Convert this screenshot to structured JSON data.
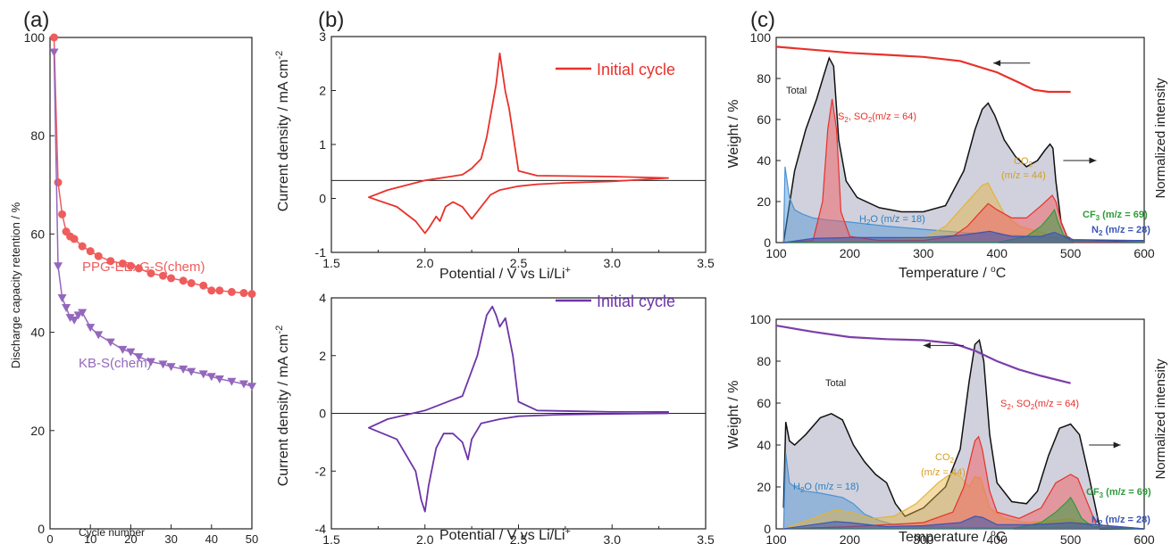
{
  "panel_labels": {
    "a": "(a)",
    "b": "(b)",
    "c": "(c)"
  },
  "colors": {
    "pink": "#ef5c5c",
    "purple": "#9467bd",
    "cv_red": "#e8312b",
    "cv_purple": "#6d35a8",
    "total_fill": "#c8c9d6",
    "s2": "#f25d5d",
    "co2": "#e4b23c",
    "h2o": "#4c92d2",
    "cf3": "#2e9b3a",
    "n2": "#3a55b5",
    "weight_top": "#e8312b",
    "weight_bot": "#7b3fa8"
  },
  "texts": {
    "a_ylabel": "Discharge capacity retention / %",
    "a_xlabel": "Cycle number",
    "a_series1": "PPG-EExG-S(chem)",
    "a_series2": "KB-S(chem)",
    "b_ylabel": "Current density / mA cm",
    "b_ylabel_sup": "-2",
    "b_xlabel_main": "Potential / V vs Li/Li",
    "b_xlabel_sup": "+",
    "b_legend": "Initial cycle",
    "c_ylabel": "Weight / %",
    "c_ylabel_right": "Normalized intensity",
    "c_xlabel_main": "Temperature / ",
    "c_xlabel_sup": "o",
    "c_xlabel_unit": "C",
    "total": "Total",
    "s2_main": "S",
    "s2_sub": "2",
    "s2_rest": ", SO",
    "s2_sub2": "2",
    "s2_tail": "(m/z = 64)",
    "co2_main": "CO",
    "co2_sub": "2",
    "co2_mz": "(m/z = 44)",
    "h2o_main": "H",
    "h2o_sub": "2",
    "h2o_tail": "O (m/z = 18)",
    "cf3_main": "CF",
    "cf3_sub": "3",
    "cf3_tail": " (m/z = 69)",
    "n2_main": "N",
    "n2_sub": "2",
    "n2_tail": " (m/z = 28)"
  },
  "chart_data": [
    {
      "id": "a",
      "type": "scatter",
      "xlabel": "Cycle number",
      "ylabel": "Discharge capacity retention / %",
      "xlim": [
        0,
        50
      ],
      "ylim": [
        0,
        100
      ],
      "xticks": [
        "0",
        "10",
        "20",
        "30",
        "40",
        "50"
      ],
      "yticks": [
        "0",
        "20",
        "40",
        "60",
        "80",
        "100"
      ],
      "series": [
        {
          "name": "PPG-EExG-S(chem)",
          "marker": "circle",
          "x": [
            1,
            2,
            3,
            4,
            5,
            6,
            8,
            10,
            12,
            15,
            18,
            20,
            22,
            25,
            28,
            30,
            33,
            35,
            38,
            40,
            42,
            45,
            48,
            50
          ],
          "y": [
            100,
            70.5,
            64,
            60.5,
            59.5,
            59,
            57.5,
            56.5,
            55.5,
            54.5,
            54,
            53.5,
            53,
            52,
            51.5,
            51,
            50.5,
            50,
            49.5,
            48.5,
            48.5,
            48.2,
            48,
            47.8
          ]
        },
        {
          "name": "KB-S(chem)",
          "marker": "triangle-down",
          "x": [
            1,
            2,
            3,
            4,
            5,
            6,
            7,
            8,
            10,
            12,
            15,
            18,
            20,
            22,
            25,
            28,
            30,
            33,
            35,
            38,
            40,
            42,
            45,
            48,
            50
          ],
          "y": [
            97,
            53.5,
            47,
            45,
            43,
            42.5,
            43.5,
            44,
            41,
            39.5,
            38,
            36.5,
            36,
            35,
            34,
            33.5,
            33,
            32.5,
            32,
            31.5,
            31,
            30.5,
            30,
            29.5,
            29
          ]
        }
      ]
    },
    {
      "id": "b-top",
      "type": "line",
      "xlabel": "Potential / V vs Li/Li+",
      "ylabel": "Current density / mA cm-2",
      "xlim": [
        1.5,
        3.5
      ],
      "ylim": [
        -1.5,
        3
      ],
      "xticks": [
        "1.5",
        "2.0",
        "2.5",
        "3.0",
        "3.5"
      ],
      "yticks": [
        "-1",
        "0",
        "1",
        "2",
        "3"
      ],
      "series": [
        {
          "name": "Initial cycle",
          "x": [
            1.7,
            1.85,
            1.95,
            2.0,
            2.02,
            2.06,
            2.08,
            2.11,
            2.15,
            2.2,
            2.25,
            2.3,
            2.35,
            2.4,
            2.5,
            2.6,
            2.75,
            3.0,
            3.3,
            3.3,
            3.0,
            2.6,
            2.5,
            2.45,
            2.43,
            2.4,
            2.38,
            2.33,
            2.3,
            2.25,
            2.2,
            2.0,
            1.8,
            1.7
          ],
          "y": [
            -0.35,
            -0.55,
            -0.85,
            -1.1,
            -1.0,
            -0.75,
            -0.85,
            -0.55,
            -0.45,
            -0.55,
            -0.8,
            -0.55,
            -0.3,
            -0.2,
            -0.12,
            -0.08,
            -0.05,
            -0.02,
            0.05,
            0.05,
            0.08,
            0.1,
            0.2,
            1.5,
            1.85,
            2.65,
            2.0,
            0.9,
            0.45,
            0.25,
            0.12,
            0.0,
            -0.2,
            -0.35
          ]
        }
      ]
    },
    {
      "id": "b-bottom",
      "type": "line",
      "xlabel": "Potential / V vs Li/Li+",
      "ylabel": "Current density / mA cm-2",
      "xlim": [
        1.5,
        3.5
      ],
      "ylim": [
        -4,
        4
      ],
      "xticks": [
        "1.5",
        "2.0",
        "2.5",
        "3.0",
        "3.5"
      ],
      "yticks": [
        "-4",
        "-2",
        "0",
        "2",
        "4"
      ],
      "series": [
        {
          "name": "Initial cycle",
          "x": [
            1.7,
            1.85,
            1.95,
            1.98,
            2.0,
            2.02,
            2.06,
            2.1,
            2.15,
            2.2,
            2.23,
            2.25,
            2.3,
            2.4,
            2.5,
            2.7,
            3.0,
            3.3,
            3.3,
            3.0,
            2.6,
            2.5,
            2.47,
            2.43,
            2.4,
            2.38,
            2.36,
            2.33,
            2.28,
            2.2,
            2.0,
            1.8,
            1.7
          ],
          "y": [
            -0.5,
            -0.9,
            -2.0,
            -3.0,
            -3.4,
            -2.5,
            -1.2,
            -0.7,
            -0.7,
            -1.0,
            -1.6,
            -0.9,
            -0.35,
            -0.2,
            -0.1,
            -0.05,
            -0.02,
            0.0,
            0.05,
            0.05,
            0.1,
            0.4,
            2.0,
            3.3,
            3.0,
            3.4,
            3.7,
            3.4,
            2.0,
            0.6,
            0.1,
            -0.2,
            -0.5
          ]
        }
      ]
    },
    {
      "id": "c-top",
      "type": "area",
      "xlabel": "Temperature / oC",
      "ylabel": "Weight / %",
      "ylabel_right": "Normalized intensity",
      "xlim": [
        100,
        600
      ],
      "ylim": [
        0,
        100
      ],
      "xticks": [
        "100",
        "200",
        "300",
        "400",
        "500",
        "600"
      ],
      "yticks": [
        "0",
        "20",
        "40",
        "60",
        "80",
        "100"
      ],
      "series": [
        {
          "name": "Weight",
          "x": [
            100,
            150,
            200,
            250,
            300,
            350,
            400,
            430,
            450,
            470,
            500
          ],
          "y": [
            95.5,
            94,
            92.5,
            91.5,
            90.5,
            88.5,
            83,
            78,
            74.5,
            73.5,
            73.5
          ]
        },
        {
          "name": "Total",
          "x": [
            110,
            125,
            140,
            155,
            165,
            172,
            178,
            185,
            195,
            210,
            240,
            270,
            300,
            330,
            355,
            370,
            380,
            388,
            397,
            410,
            425,
            440,
            455,
            465,
            472,
            476,
            480,
            487,
            495,
            505,
            600
          ],
          "y": [
            0,
            35,
            55,
            70,
            82,
            90,
            86,
            50,
            30,
            22,
            17,
            15,
            15,
            18,
            35,
            55,
            65,
            68,
            62,
            50,
            42,
            37,
            40,
            45,
            48,
            46,
            30,
            10,
            3,
            1,
            1
          ]
        },
        {
          "name": "S2, SO2 (m/z = 64)",
          "x": [
            110,
            150,
            163,
            170,
            176,
            182,
            188,
            200,
            240,
            300,
            340,
            360,
            375,
            388,
            400,
            420,
            440,
            460,
            475,
            480,
            487,
            495,
            505,
            600
          ],
          "y": [
            0,
            1,
            20,
            55,
            70,
            55,
            15,
            3,
            1,
            1,
            3,
            8,
            14,
            19,
            16,
            12,
            12,
            18,
            23,
            20,
            10,
            3,
            0,
            0
          ]
        },
        {
          "name": "CO2 (m/z = 44)",
          "x": [
            110,
            200,
            300,
            330,
            355,
            370,
            380,
            388,
            395,
            410,
            430,
            460,
            480,
            500,
            600
          ],
          "y": [
            0,
            1,
            2,
            8,
            18,
            24,
            28,
            29,
            24,
            14,
            8,
            5,
            3,
            1,
            0
          ]
        },
        {
          "name": "H2O (m/z = 18)",
          "x": [
            110,
            112,
            118,
            125,
            135,
            150,
            170,
            200,
            250,
            300,
            350,
            400,
            450,
            500,
            510,
            600
          ],
          "y": [
            0,
            37,
            22,
            16,
            14,
            12,
            11,
            10,
            8,
            6.5,
            5,
            4,
            3,
            2,
            0,
            0
          ]
        },
        {
          "name": "CF3 (m/z = 69)",
          "x": [
            110,
            400,
            440,
            460,
            472,
            478,
            483,
            490,
            500,
            600
          ],
          "y": [
            0,
            0,
            3,
            8,
            13,
            16,
            10,
            4,
            1,
            0
          ]
        },
        {
          "name": "N2 (m/z = 28)",
          "x": [
            110,
            150,
            200,
            300,
            350,
            380,
            390,
            420,
            460,
            478,
            500,
            600
          ],
          "y": [
            0,
            2,
            2.5,
            2.5,
            3.5,
            5,
            5.5,
            3,
            3,
            5,
            1.5,
            1
          ]
        }
      ]
    },
    {
      "id": "c-bottom",
      "type": "area",
      "xlabel": "Temperature / oC",
      "ylabel": "Weight / %",
      "ylabel_right": "Normalized intensity",
      "xlim": [
        100,
        600
      ],
      "ylim": [
        0,
        100
      ],
      "xticks": [
        "100",
        "200",
        "300",
        "400",
        "500",
        "600"
      ],
      "yticks": [
        "0",
        "20",
        "40",
        "60",
        "80",
        "100"
      ],
      "series": [
        {
          "name": "Weight",
          "x": [
            100,
            150,
            200,
            250,
            300,
            340,
            370,
            400,
            430,
            460,
            500
          ],
          "y": [
            97,
            94,
            91.5,
            90.5,
            90,
            88.5,
            85,
            80,
            76,
            73,
            69.5
          ]
        },
        {
          "name": "Total",
          "x": [
            110,
            113,
            118,
            125,
            140,
            160,
            175,
            190,
            205,
            220,
            235,
            250,
            262,
            275,
            300,
            330,
            350,
            362,
            370,
            376,
            382,
            390,
            400,
            420,
            440,
            455,
            470,
            485,
            500,
            512,
            525,
            540,
            600
          ],
          "y": [
            10,
            51,
            42,
            40,
            45,
            53,
            55,
            52,
            40,
            32,
            26,
            22,
            12,
            6,
            10,
            20,
            38,
            70,
            88,
            90,
            80,
            45,
            22,
            13,
            12,
            18,
            35,
            48,
            50,
            45,
            25,
            0,
            0
          ]
        },
        {
          "name": "S2, SO2 (m/z = 64)",
          "x": [
            110,
            200,
            300,
            340,
            355,
            365,
            370,
            375,
            380,
            390,
            400,
            430,
            460,
            480,
            500,
            510,
            520,
            535,
            600
          ],
          "y": [
            0,
            1,
            3,
            8,
            20,
            35,
            42,
            44,
            38,
            18,
            8,
            5,
            10,
            22,
            26,
            24,
            15,
            2,
            0
          ]
        },
        {
          "name": "CO2 (m/z = 44)",
          "x": [
            110,
            150,
            180,
            200,
            230,
            260,
            290,
            320,
            340,
            350,
            362,
            370,
            378,
            390,
            410,
            440,
            480,
            500,
            530,
            600
          ],
          "y": [
            0,
            5,
            9,
            8,
            5,
            6,
            12,
            22,
            27,
            25,
            20,
            25,
            24,
            10,
            5,
            3,
            4,
            5,
            1,
            0
          ]
        },
        {
          "name": "H2O (m/z = 18)",
          "x": [
            110,
            113,
            118,
            125,
            140,
            160,
            175,
            190,
            205,
            220,
            240,
            260,
            300,
            400,
            500,
            600
          ],
          "y": [
            0,
            36,
            22,
            20,
            18,
            17,
            16,
            15,
            12,
            7,
            4,
            2,
            1,
            0.5,
            0.5,
            0
          ]
        },
        {
          "name": "CF3 (m/z = 69)",
          "x": [
            110,
            420,
            460,
            480,
            495,
            500,
            505,
            515,
            530,
            600
          ],
          "y": [
            0,
            0,
            3,
            8,
            13,
            15,
            12,
            5,
            1,
            0
          ]
        },
        {
          "name": "N2 (m/z = 28)",
          "x": [
            110,
            150,
            180,
            200,
            250,
            300,
            350,
            370,
            380,
            400,
            450,
            500,
            600
          ],
          "y": [
            0,
            2,
            3.5,
            3,
            1,
            1.5,
            3,
            6,
            5.5,
            2,
            2,
            3,
            0
          ]
        }
      ]
    }
  ]
}
